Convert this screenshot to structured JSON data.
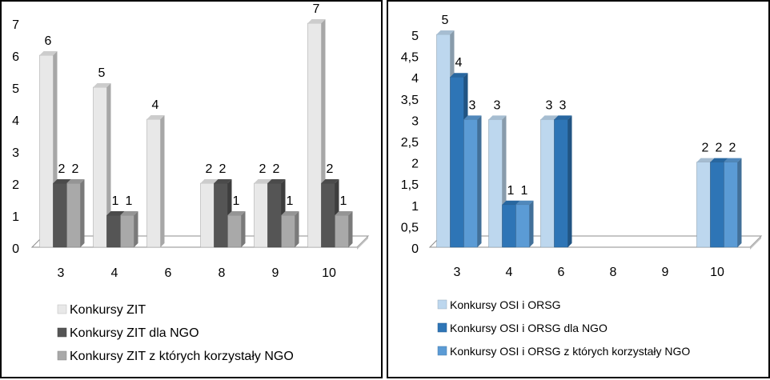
{
  "chart_data": [
    {
      "type": "bar",
      "categories": [
        "3",
        "4",
        "6",
        "8",
        "9",
        "10"
      ],
      "ylim": [
        0,
        7
      ],
      "yticks": [
        "0",
        "1",
        "2",
        "3",
        "4",
        "5",
        "6",
        "7"
      ],
      "grid": false,
      "legend_position": "bottom",
      "series": [
        {
          "name": "Konkursy ZIT",
          "values": [
            6,
            5,
            4,
            2,
            2,
            7
          ],
          "color": "#e8e8e8"
        },
        {
          "name": "Konkursy ZIT dla NGO",
          "values": [
            2,
            1,
            0,
            2,
            2,
            2
          ],
          "color": "#555555"
        },
        {
          "name": "Konkursy ZIT z których korzystały NGO",
          "values": [
            2,
            1,
            0,
            1,
            1,
            1
          ],
          "color": "#a9a9a9"
        }
      ]
    },
    {
      "type": "bar",
      "categories": [
        "3",
        "4",
        "6",
        "8",
        "9",
        "10"
      ],
      "ylim": [
        0,
        5
      ],
      "yticks": [
        "0",
        "0,5",
        "1",
        "1,5",
        "2",
        "2,5",
        "3",
        "3,5",
        "4",
        "4,5",
        "5"
      ],
      "grid": false,
      "legend_position": "bottom",
      "series": [
        {
          "name": "Konkursy OSI i ORSG",
          "values": [
            5,
            3,
            3,
            0,
            0,
            2
          ],
          "color": "#bdd7ee"
        },
        {
          "name": "Konkursy OSI i ORSG dla NGO",
          "values": [
            4,
            1,
            3,
            0,
            0,
            2
          ],
          "color": "#2e75b6"
        },
        {
          "name": "Konkursy OSI i ORSG z których korzystały NGO",
          "values": [
            3,
            1,
            0,
            0,
            0,
            2
          ],
          "color": "#5b9bd5"
        }
      ]
    }
  ]
}
